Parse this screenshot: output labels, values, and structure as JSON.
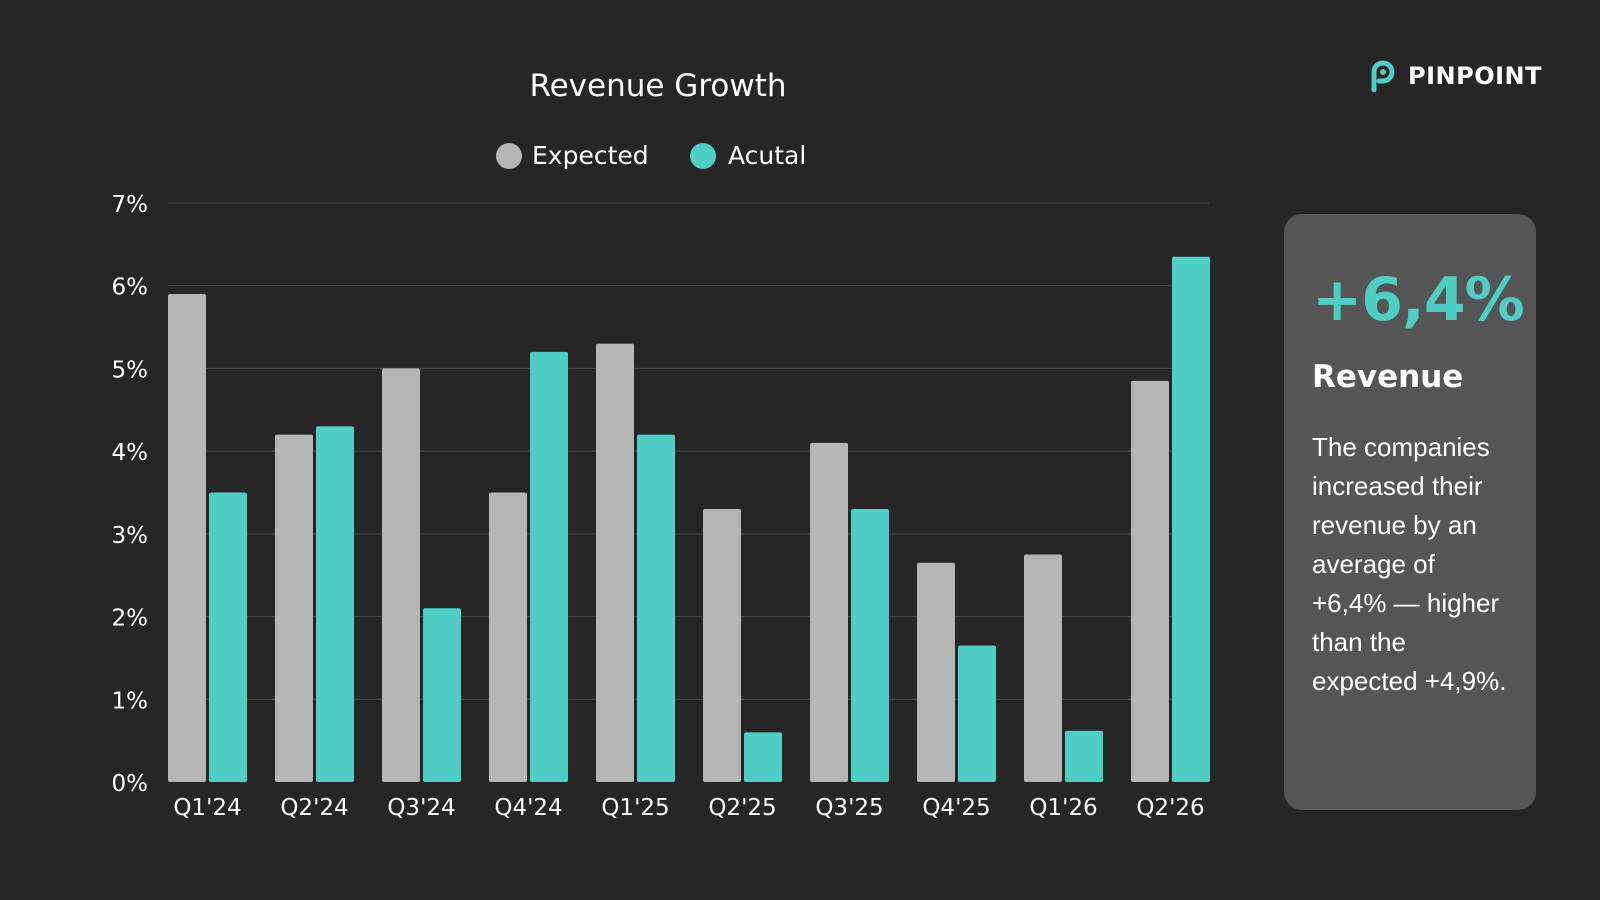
{
  "brand": {
    "name": "PINPOINT",
    "logo_icon": "pinpoint-p-logo-icon"
  },
  "colors": {
    "background": "#262626",
    "expected": "#b5b5b5",
    "actual": "#4fcec3",
    "card": "#555555",
    "grid": "#4a4a4a"
  },
  "highlight": {
    "value": "+6,4%",
    "label": "Revenue",
    "description": "The companies increased their revenue by an average of +6,4% — higher than the expected +4,9%."
  },
  "chart_data": {
    "type": "bar",
    "title": "Revenue Growth",
    "xlabel": "",
    "ylabel": "",
    "categories": [
      "Q1'24",
      "Q2'24",
      "Q3'24",
      "Q4'24",
      "Q1'25",
      "Q2'25",
      "Q3'25",
      "Q4'25",
      "Q1'26",
      "Q2'26"
    ],
    "series": [
      {
        "name": "Expected",
        "values": [
          5.9,
          4.2,
          5.0,
          3.5,
          5.3,
          3.3,
          4.1,
          2.65,
          2.75,
          4.85
        ]
      },
      {
        "name": "Acutal",
        "values": [
          3.5,
          4.3,
          2.1,
          5.2,
          4.2,
          0.6,
          3.3,
          1.65,
          0.62,
          6.35
        ]
      }
    ],
    "ylim": [
      0,
      7
    ],
    "yticks": [
      "0%",
      "1%",
      "2%",
      "3%",
      "4%",
      "5%",
      "6%",
      "7%"
    ],
    "grid": true,
    "legend_position": "top"
  }
}
